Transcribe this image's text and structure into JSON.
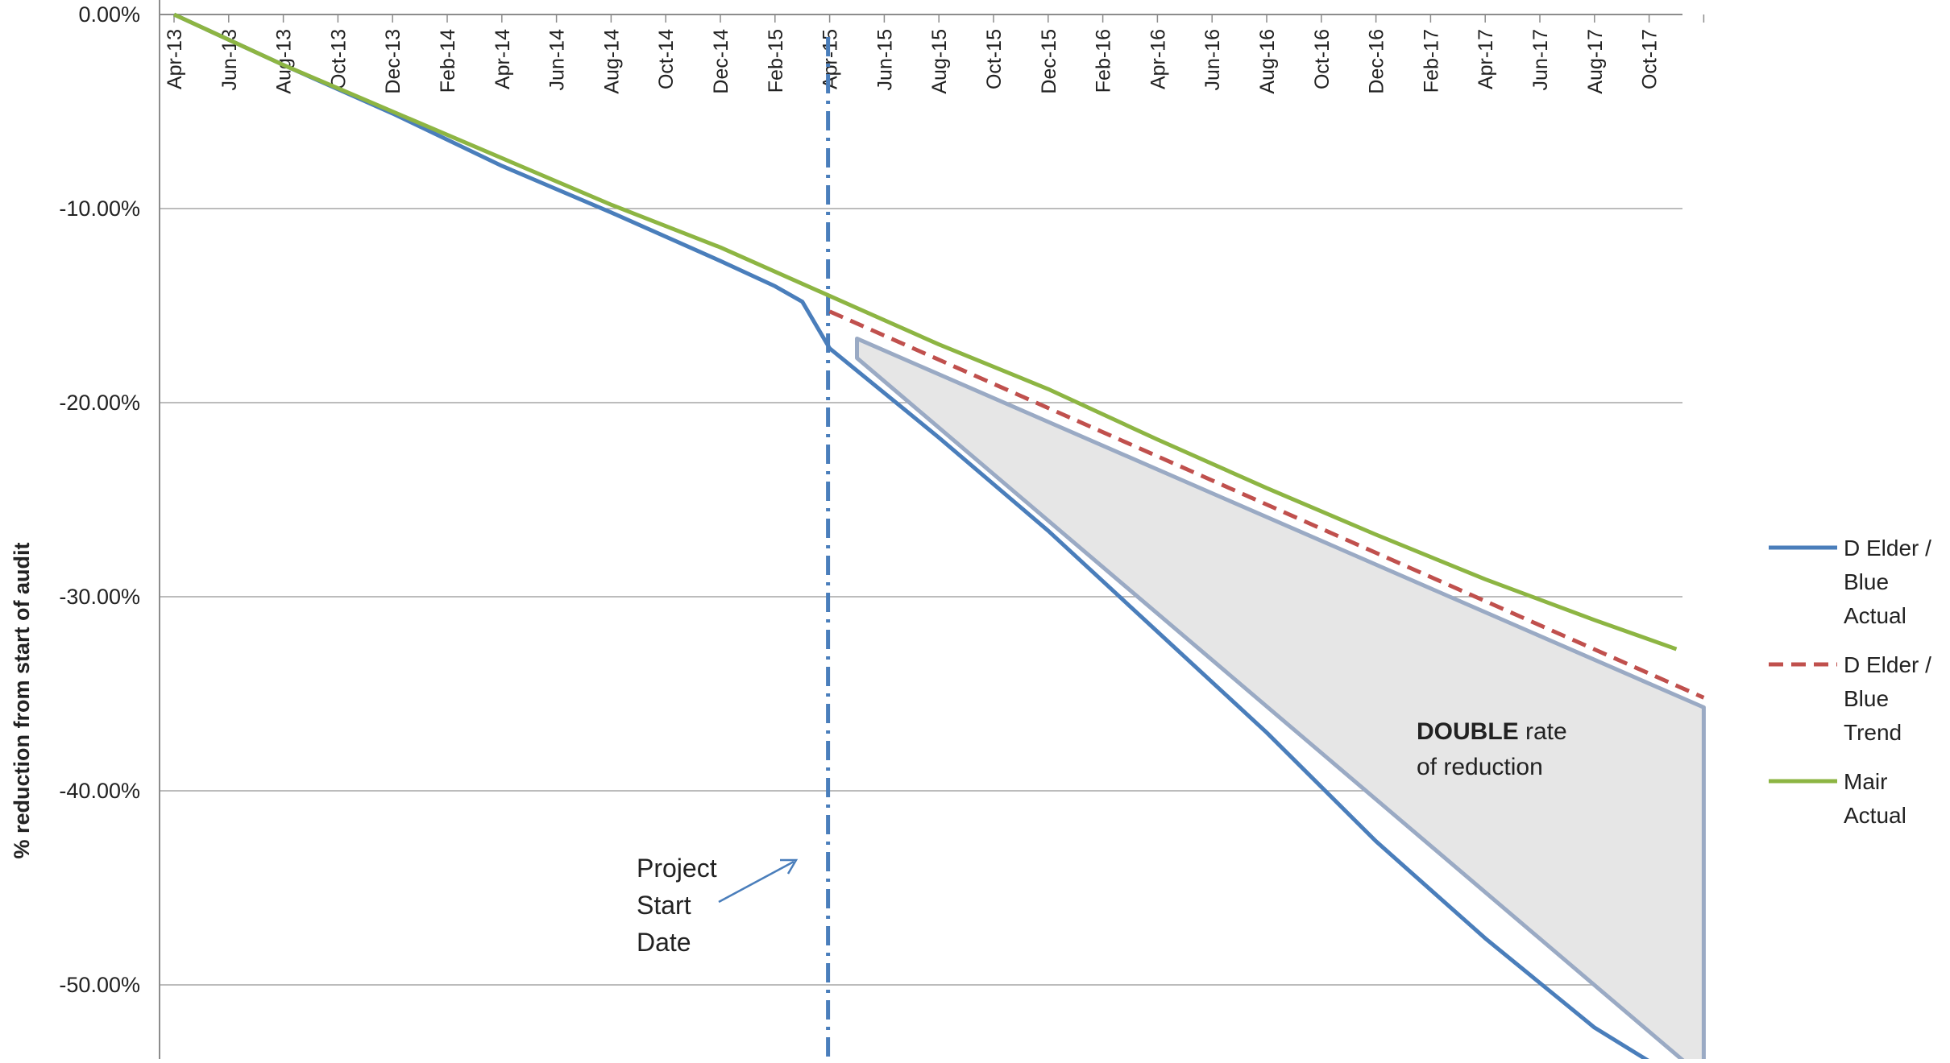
{
  "chart_data": {
    "type": "line",
    "ylabel": "% reduction from start of audit",
    "ylim": [
      -0.54,
      0
    ],
    "yticks": [
      0,
      -0.1,
      -0.2,
      -0.3,
      -0.4,
      -0.5
    ],
    "ytick_labels": [
      "0.00%",
      "-10.00%",
      "-20.00%",
      "-30.00%",
      "-40.00%",
      "-50.00%"
    ],
    "grid": true,
    "legend_position": "right",
    "x_months": [
      "Apr-13",
      "May-13",
      "Jun-13",
      "Jul-13",
      "Aug-13",
      "Sep-13",
      "Oct-13",
      "Nov-13",
      "Dec-13",
      "Jan-14",
      "Feb-14",
      "Mar-14",
      "Apr-14",
      "May-14",
      "Jun-14",
      "Jul-14",
      "Aug-14",
      "Sep-14",
      "Oct-14",
      "Nov-14",
      "Dec-14",
      "Jan-15",
      "Feb-15",
      "Mar-15",
      "Apr-15",
      "May-15",
      "Jun-15",
      "Jul-15",
      "Aug-15",
      "Sep-15",
      "Oct-15",
      "Nov-15",
      "Dec-15",
      "Jan-16",
      "Feb-16",
      "Mar-16",
      "Apr-16",
      "May-16",
      "Jun-16",
      "Jul-16",
      "Aug-16",
      "Sep-16",
      "Oct-16",
      "Nov-16",
      "Dec-16",
      "Jan-17",
      "Feb-17",
      "Mar-17",
      "Apr-17",
      "May-17",
      "Jun-17",
      "Jul-17",
      "Aug-17",
      "Sep-17",
      "Oct-17",
      "Nov-17",
      "Dec-17"
    ],
    "x_tick_labels": [
      "Apr-13",
      "Jun-13",
      "Aug-13",
      "Oct-13",
      "Dec-13",
      "Feb-14",
      "Apr-14",
      "Jun-14",
      "Aug-14",
      "Oct-14",
      "Dec-14",
      "Feb-15",
      "Apr-15",
      "Jun-15",
      "Aug-15",
      "Oct-15",
      "Dec-15",
      "Feb-16",
      "Apr-16",
      "Jun-16",
      "Aug-16",
      "Oct-16",
      "Dec-16",
      "Feb-17",
      "Apr-17",
      "Jun-17",
      "Aug-17",
      "Oct-17"
    ],
    "series": [
      {
        "name": "D Elder / Blue Actual",
        "color": "#4a7ebb",
        "style": "solid",
        "points": [
          [
            "Apr-13",
            0.0
          ],
          [
            "Aug-13",
            -0.026
          ],
          [
            "Dec-13",
            -0.051
          ],
          [
            "Apr-14",
            -0.078
          ],
          [
            "Aug-14",
            -0.102
          ],
          [
            "Dec-14",
            -0.127
          ],
          [
            "Feb-15",
            -0.14
          ],
          [
            "Mar-15",
            -0.148
          ],
          [
            "Apr-15",
            -0.172
          ],
          [
            "Aug-15",
            -0.218
          ],
          [
            "Dec-15",
            -0.266
          ],
          [
            "Apr-16",
            -0.318
          ],
          [
            "Aug-16",
            -0.37
          ],
          [
            "Dec-16",
            -0.426
          ],
          [
            "Apr-17",
            -0.476
          ],
          [
            "Aug-17",
            -0.522
          ],
          [
            "Nov-17",
            -0.548
          ]
        ]
      },
      {
        "name": "D Elder / Blue Trend",
        "color": "#c0504d",
        "style": "dashed",
        "points": [
          [
            "Apr-15",
            -0.153
          ],
          [
            "Dec-17",
            -0.352
          ]
        ]
      },
      {
        "name": "Mair Actual",
        "color": "#8db543",
        "style": "solid",
        "points": [
          [
            "Apr-13",
            0.0
          ],
          [
            "Aug-13",
            -0.026
          ],
          [
            "Dec-13",
            -0.05
          ],
          [
            "Apr-14",
            -0.074
          ],
          [
            "Aug-14",
            -0.098
          ],
          [
            "Dec-14",
            -0.12
          ],
          [
            "Apr-15",
            -0.145
          ],
          [
            "Aug-15",
            -0.17
          ],
          [
            "Dec-15",
            -0.193
          ],
          [
            "Apr-16",
            -0.219
          ],
          [
            "Aug-16",
            -0.244
          ],
          [
            "Dec-16",
            -0.268
          ],
          [
            "Apr-17",
            -0.291
          ],
          [
            "Aug-17",
            -0.312
          ],
          [
            "Nov-17",
            -0.327
          ]
        ]
      }
    ],
    "project_start": "Apr-15",
    "shaded_region": {
      "points": [
        [
          "May-15",
          -0.167
        ],
        [
          "Dec-17",
          -0.357
        ],
        [
          "Dec-17",
          -0.548
        ],
        [
          "May-15",
          -0.177
        ]
      ],
      "fill": "#e6e6e6",
      "stroke": "#9aaac4"
    },
    "annotations": {
      "double_bold": "DOUBLE",
      "double_rest": " rate",
      "double_line2": "of reduction",
      "project_lines": [
        "Project",
        "Start",
        "Date"
      ]
    }
  }
}
